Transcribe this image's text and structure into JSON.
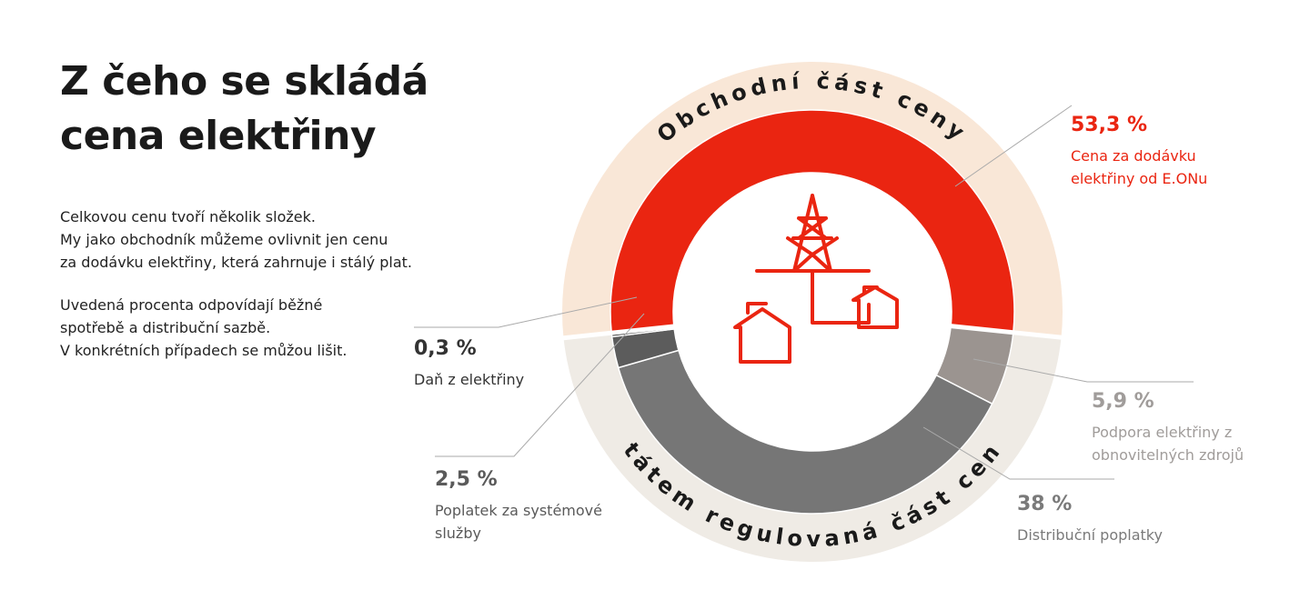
{
  "title": [
    "Z čeho se skládá",
    "cena elektřiny"
  ],
  "intro": [
    [
      "Celkovou cenu tvoří několik složek.",
      "My jako obchodník můžeme ovlivnit jen cenu",
      "za dodávku elektřiny, která zahrnuje i stálý plat."
    ],
    [
      "Uvedená procenta odpovídají běžné",
      "spotřebě a distribuční sazbě.",
      "V konkrétních případech se můžou lišit."
    ]
  ],
  "chart_data": {
    "type": "donut",
    "categories": [
      "Cena za dodávku elektřiny od E.ONu",
      "Podpora elektřiny z obnovitelných zdrojů",
      "Distribuční poplatky",
      "Poplatek za systémové služby",
      "Daň z elektřiny"
    ],
    "values": [
      53.3,
      5.9,
      38,
      2.5,
      0.3
    ],
    "value_labels": [
      "53,3 %",
      "5,9 %",
      "38 %",
      "2,5 %",
      "0,3 %"
    ],
    "colors": [
      "#ea2511",
      "#9b9490",
      "#767676",
      "#5c5c5c",
      "#2a2a2a"
    ],
    "label_colors": [
      "#ea2511",
      "#a09c9a",
      "#7a7a7a",
      "#5a5a5a",
      "#333333"
    ],
    "ring_labels": [
      "Obchodní část ceny",
      "Státem regulovaná část ceny"
    ]
  }
}
